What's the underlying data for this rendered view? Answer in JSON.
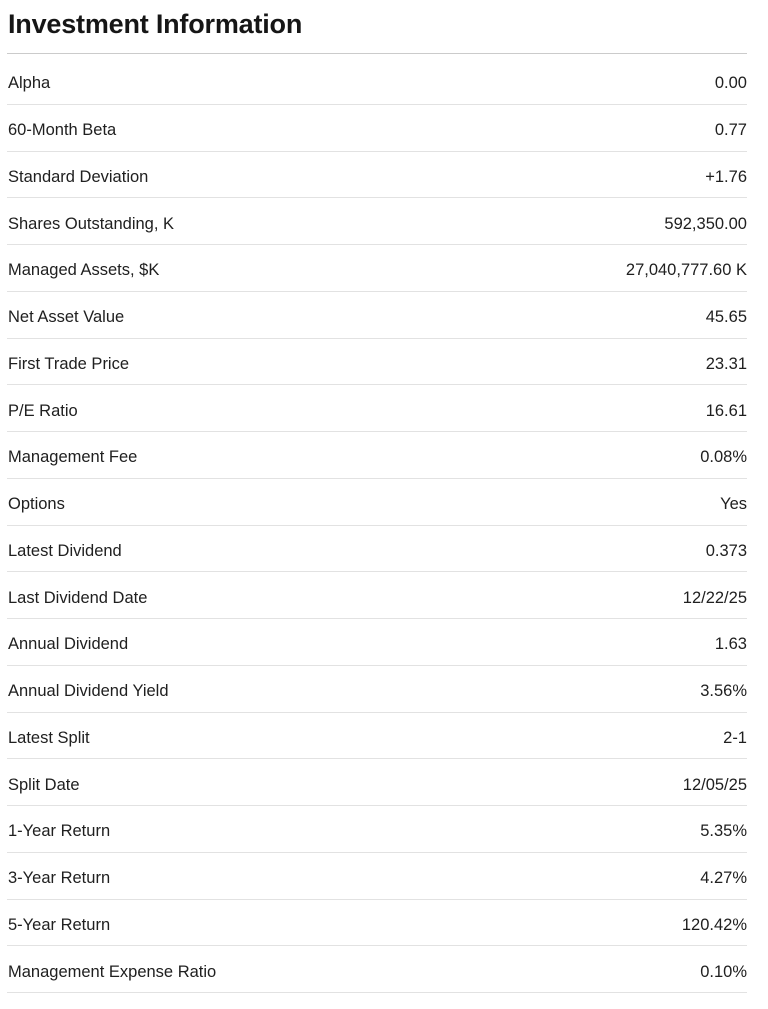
{
  "page": {
    "title": "Investment Information"
  },
  "colors": {
    "background": "#ffffff",
    "text": "#202020",
    "title_text": "#161616",
    "header_divider": "#cbcbcb",
    "row_divider": "#e2e2e2"
  },
  "table": {
    "rows": [
      {
        "label": "Alpha",
        "value": "0.00"
      },
      {
        "label": "60-Month Beta",
        "value": "0.77"
      },
      {
        "label": "Standard Deviation",
        "value": "+1.76"
      },
      {
        "label": "Shares Outstanding, K",
        "value": "592,350.00"
      },
      {
        "label": "Managed Assets, $K",
        "value": "27,040,777.60 K"
      },
      {
        "label": "Net Asset Value",
        "value": "45.65"
      },
      {
        "label": "First Trade Price",
        "value": "23.31"
      },
      {
        "label": "P/E Ratio",
        "value": "16.61"
      },
      {
        "label": "Management Fee",
        "value": "0.08%"
      },
      {
        "label": "Options",
        "value": "Yes"
      },
      {
        "label": "Latest Dividend",
        "value": "0.373"
      },
      {
        "label": "Last Dividend Date",
        "value": "12/22/25"
      },
      {
        "label": "Annual Dividend",
        "value": "1.63"
      },
      {
        "label": "Annual Dividend Yield",
        "value": "3.56%"
      },
      {
        "label": "Latest Split",
        "value": "2-1"
      },
      {
        "label": "Split Date",
        "value": "12/05/25"
      },
      {
        "label": "1-Year Return",
        "value": "5.35%"
      },
      {
        "label": "3-Year Return",
        "value": "4.27%"
      },
      {
        "label": "5-Year Return",
        "value": "120.42%"
      },
      {
        "label": "Management Expense Ratio",
        "value": "0.10%"
      }
    ]
  }
}
